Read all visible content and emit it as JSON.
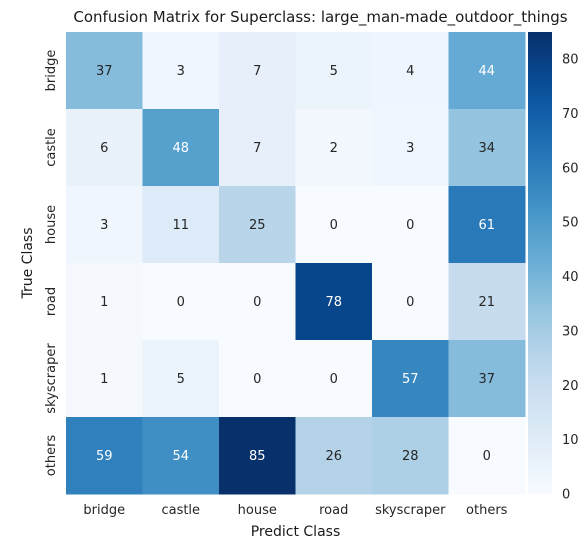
{
  "chart_data": {
    "type": "heatmap",
    "title": "Confusion Matrix for Superclass: large_man-made_outdoor_things",
    "xlabel": "Predict Class",
    "ylabel": "True Class",
    "x_categories": [
      "bridge",
      "castle",
      "house",
      "road",
      "skyscraper",
      "others"
    ],
    "y_categories": [
      "bridge",
      "castle",
      "house",
      "road",
      "skyscraper",
      "others"
    ],
    "values": [
      [
        37,
        3,
        7,
        5,
        4,
        44
      ],
      [
        6,
        48,
        7,
        2,
        3,
        34
      ],
      [
        3,
        11,
        25,
        0,
        0,
        61
      ],
      [
        1,
        0,
        0,
        78,
        0,
        21
      ],
      [
        1,
        5,
        0,
        0,
        57,
        37
      ],
      [
        59,
        54,
        85,
        26,
        28,
        0
      ]
    ],
    "colorscale": "Blues",
    "vmin": 0,
    "vmax": 85,
    "colorbar_ticks": [
      0,
      10,
      20,
      30,
      40,
      50,
      60,
      70,
      80
    ]
  }
}
